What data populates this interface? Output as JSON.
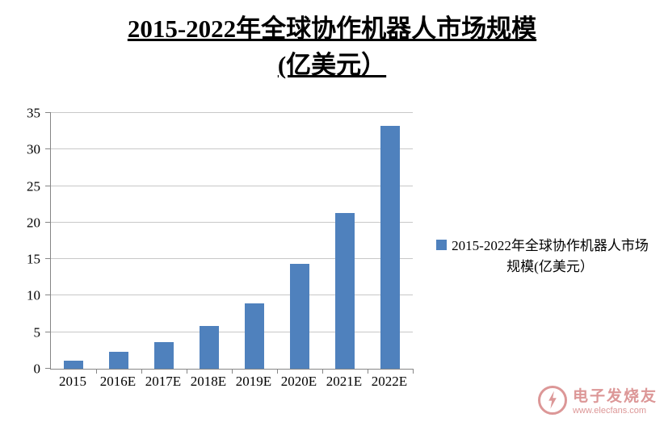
{
  "title": {
    "line1": "2015-2022年全球协作机器人市场规模",
    "line2": "(亿美元）"
  },
  "chart_data": {
    "type": "bar",
    "title": "2015-2022年全球协作机器人市场规模(亿美元）",
    "categories": [
      "2015",
      "2016E",
      "2017E",
      "2018E",
      "2019E",
      "2020E",
      "2021E",
      "2022E"
    ],
    "values": [
      1.1,
      2.3,
      3.7,
      5.9,
      8.9,
      14.3,
      21.3,
      33.2
    ],
    "xlabel": "",
    "ylabel": "",
    "ylim": [
      0,
      35
    ],
    "yticks": [
      0,
      5,
      10,
      15,
      20,
      25,
      30,
      35
    ],
    "grid": true,
    "legend_position": "right",
    "bar_color": "#4F81BD"
  },
  "legend": {
    "label": "2015-2022年全球协作机器人市场规模(亿美元）",
    "swatch_color": "#4F81BD"
  },
  "watermark": {
    "name": "电子发烧友",
    "url": "www.elecfans.com"
  }
}
